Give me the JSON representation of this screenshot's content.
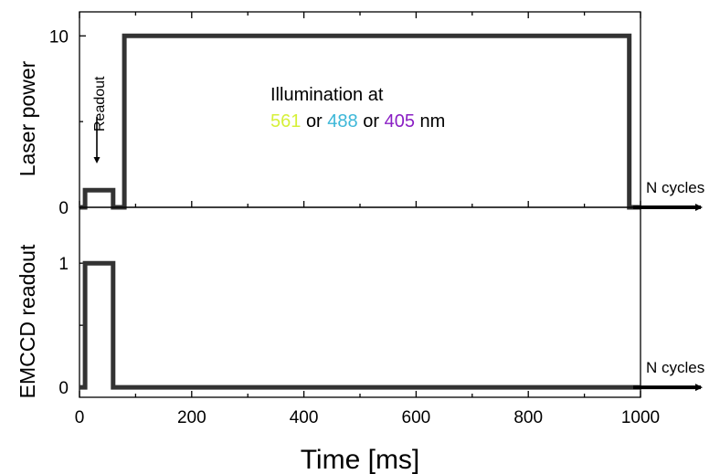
{
  "chart_data": [
    {
      "type": "line",
      "ylabel": "Laser power",
      "ylim": [
        0,
        11.4
      ],
      "yticks": [
        0,
        10
      ],
      "xlim": [
        0,
        1000
      ],
      "series": [
        {
          "x": [
            0,
            10,
            10,
            60,
            60,
            80,
            80,
            980,
            980,
            1000
          ],
          "y": [
            0,
            0,
            1,
            1,
            0,
            0,
            10,
            10,
            0,
            0
          ]
        }
      ],
      "arrow_label": "N cycles",
      "annotation_readout": "Readout",
      "illumination": {
        "line1": "Illumination at",
        "w1": "561",
        "or1": "or",
        "w2": "488",
        "or2": "or",
        "w3": "405",
        "unit": "nm",
        "colors": {
          "w1": "#d6f03a",
          "w2": "#3cb7d8",
          "w3": "#8a1fc4"
        }
      }
    },
    {
      "type": "line",
      "ylabel": "EMCCD readout",
      "ylim": [
        -0.08,
        1.45
      ],
      "yticks": [
        0,
        1
      ],
      "xlim": [
        0,
        1000
      ],
      "xticks": [
        0,
        200,
        400,
        600,
        800,
        1000
      ],
      "xlabel": "Time [ms]",
      "series": [
        {
          "x": [
            0,
            10,
            10,
            60,
            60,
            1000
          ],
          "y": [
            0,
            0,
            1,
            1,
            0,
            0
          ]
        }
      ],
      "arrow_label": "N cycles"
    }
  ],
  "colors": {
    "trace": "#333333",
    "axis": "#000000"
  }
}
